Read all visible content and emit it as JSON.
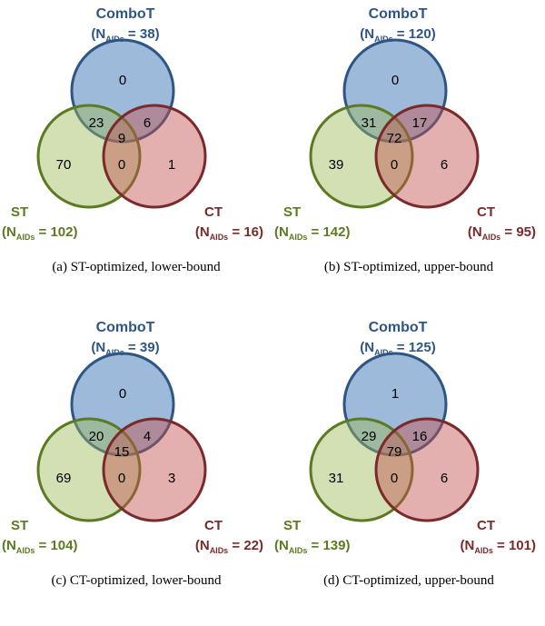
{
  "colors": {
    "combot": "#2f5583",
    "st": "#5b7a22",
    "ct": "#7a2a2a",
    "combot_fill": "rgba(79,129,189,0.55)",
    "st_fill": "rgba(155,187,89,0.45)",
    "ct_fill": "rgba(192,80,77,0.45)"
  },
  "sets": {
    "combot": "ComboT",
    "st": "ST",
    "ct": "CT"
  },
  "n_prefix": "(N",
  "n_sub": "AIDs",
  "panels": [
    {
      "caption": "(a) ST-optimized, lower-bound",
      "n_combot": "38",
      "n_st": "102",
      "n_ct": "16",
      "regions": {
        "combot_only": "0",
        "st_only": "70",
        "ct_only": "1",
        "combot_st": "23",
        "combot_ct": "6",
        "st_ct": "0",
        "all": "9"
      }
    },
    {
      "caption": "(b) ST-optimized, upper-bound",
      "n_combot": "120",
      "n_st": "142",
      "n_ct": "95",
      "regions": {
        "combot_only": "0",
        "st_only": "39",
        "ct_only": "6",
        "combot_st": "31",
        "combot_ct": "17",
        "st_ct": "0",
        "all": "72"
      }
    },
    {
      "caption": "(c) CT-optimized, lower-bound",
      "n_combot": "39",
      "n_st": "104",
      "n_ct": "22",
      "regions": {
        "combot_only": "0",
        "st_only": "69",
        "ct_only": "3",
        "combot_st": "20",
        "combot_ct": "4",
        "st_ct": "0",
        "all": "15"
      }
    },
    {
      "caption": "(d) CT-optimized, upper-bound",
      "n_combot": "125",
      "n_st": "139",
      "n_ct": "101",
      "regions": {
        "combot_only": "1",
        "st_only": "31",
        "ct_only": "6",
        "combot_st": "29",
        "combot_ct": "16",
        "st_ct": "0",
        "all": "79"
      }
    }
  ]
}
